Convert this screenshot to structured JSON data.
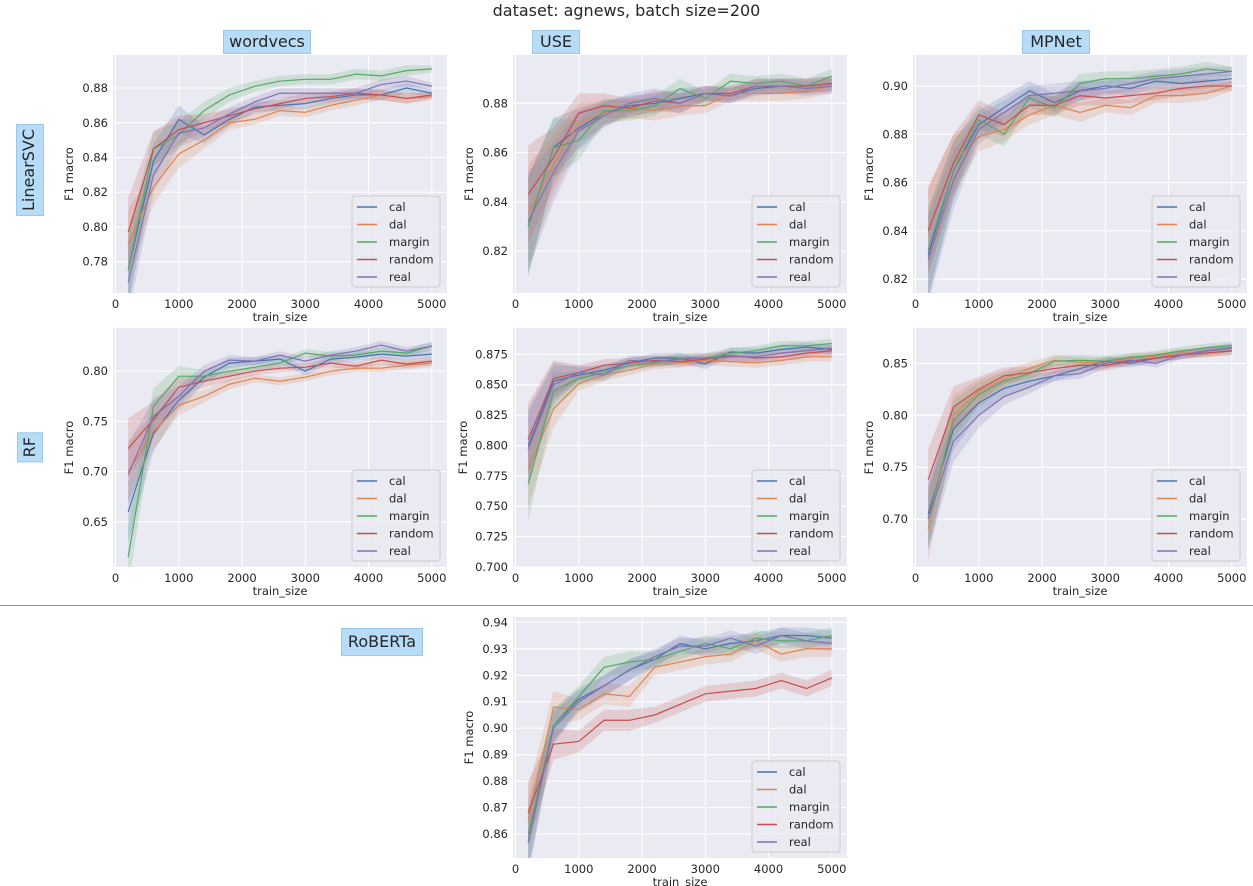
{
  "title": "dataset: agnews, batch size=200",
  "columns": [
    "wordvecs",
    "USE",
    "MPNet"
  ],
  "rows": [
    "LinearSVC",
    "RF",
    "RoBERTa"
  ],
  "colors": {
    "cal": "#4c72b0",
    "dal": "#dd8452",
    "margin": "#55a868",
    "random": "#c44e52",
    "real": "#8172b3",
    "background": "#eaeaf2",
    "grid": "#ffffff",
    "separator": "#e07b5a",
    "label_box": "#b6dcf7"
  },
  "chart_data": [
    {
      "type": "line",
      "row": "LinearSVC",
      "column": "wordvecs",
      "xlabel": "train_size",
      "ylabel": "F1 macro",
      "grid": true,
      "legend": "lower-right",
      "xlim": [
        -40,
        5240
      ],
      "ylim": [
        0.762,
        0.899
      ],
      "xticks": [
        "0",
        "1000",
        "2000",
        "3000",
        "4000",
        "5000"
      ],
      "yticks": [
        "0.78",
        "0.80",
        "0.82",
        "0.84",
        "0.86",
        "0.88"
      ],
      "x": [
        200,
        600,
        1000,
        1400,
        1800,
        2200,
        2600,
        3000,
        3400,
        3800,
        4200,
        4600,
        5000
      ],
      "ci_halfwidth": [
        0.02,
        0.01,
        0.008,
        0.005,
        0.004,
        0.003,
        0.003,
        0.003,
        0.003,
        0.003,
        0.003,
        0.003,
        0.002
      ],
      "series": [
        {
          "name": "cal",
          "values": [
            0.775,
            0.838,
            0.862,
            0.853,
            0.862,
            0.869,
            0.87,
            0.871,
            0.874,
            0.876,
            0.876,
            0.88,
            0.877
          ]
        },
        {
          "name": "dal",
          "values": [
            0.79,
            0.823,
            0.842,
            0.85,
            0.86,
            0.862,
            0.867,
            0.866,
            0.87,
            0.873,
            0.876,
            0.874,
            0.875
          ]
        },
        {
          "name": "margin",
          "values": [
            0.775,
            0.845,
            0.853,
            0.867,
            0.876,
            0.881,
            0.884,
            0.885,
            0.885,
            0.888,
            0.887,
            0.89,
            0.891
          ]
        },
        {
          "name": "random",
          "values": [
            0.797,
            0.845,
            0.856,
            0.86,
            0.864,
            0.868,
            0.871,
            0.874,
            0.875,
            0.877,
            0.876,
            0.874,
            0.876
          ]
        },
        {
          "name": "real",
          "values": [
            0.768,
            0.83,
            0.854,
            0.857,
            0.865,
            0.872,
            0.877,
            0.877,
            0.877,
            0.877,
            0.882,
            0.884,
            0.881
          ]
        }
      ]
    },
    {
      "type": "line",
      "row": "LinearSVC",
      "column": "USE",
      "xlabel": "train_size",
      "ylabel": "F1 macro",
      "grid": true,
      "legend": "lower-right",
      "xlim": [
        -40,
        5240
      ],
      "ylim": [
        0.803,
        0.8996
      ],
      "xticks": [
        "0",
        "1000",
        "2000",
        "3000",
        "4000",
        "5000"
      ],
      "yticks": [
        "0.82",
        "0.84",
        "0.86",
        "0.88"
      ],
      "x": [
        200,
        600,
        1000,
        1400,
        1800,
        2200,
        2600,
        3000,
        3400,
        3800,
        4200,
        4600,
        5000
      ],
      "ci_halfwidth": [
        0.02,
        0.012,
        0.008,
        0.005,
        0.004,
        0.004,
        0.004,
        0.003,
        0.003,
        0.003,
        0.003,
        0.003,
        0.003
      ],
      "series": [
        {
          "name": "cal",
          "values": [
            0.83,
            0.862,
            0.87,
            0.876,
            0.879,
            0.88,
            0.882,
            0.884,
            0.883,
            0.886,
            0.887,
            0.887,
            0.888
          ]
        },
        {
          "name": "dal",
          "values": [
            0.835,
            0.855,
            0.872,
            0.876,
            0.878,
            0.877,
            0.879,
            0.879,
            0.884,
            0.884,
            0.884,
            0.885,
            0.887
          ]
        },
        {
          "name": "margin",
          "values": [
            0.83,
            0.862,
            0.865,
            0.877,
            0.877,
            0.879,
            0.886,
            0.882,
            0.889,
            0.888,
            0.889,
            0.887,
            0.891
          ]
        },
        {
          "name": "random",
          "values": [
            0.843,
            0.858,
            0.876,
            0.879,
            0.878,
            0.881,
            0.88,
            0.884,
            0.884,
            0.887,
            0.887,
            0.887,
            0.888
          ]
        },
        {
          "name": "real",
          "values": [
            0.832,
            0.852,
            0.869,
            0.875,
            0.88,
            0.882,
            0.88,
            0.884,
            0.883,
            0.887,
            0.887,
            0.886,
            0.887
          ]
        }
      ]
    },
    {
      "type": "line",
      "row": "LinearSVC",
      "column": "MPNet",
      "xlabel": "train_size",
      "ylabel": "F1 macro",
      "grid": true,
      "legend": "lower-right",
      "xlim": [
        -40,
        5240
      ],
      "ylim": [
        0.8143,
        0.9128
      ],
      "xticks": [
        "0",
        "1000",
        "2000",
        "3000",
        "4000",
        "5000"
      ],
      "yticks": [
        "0.82",
        "0.84",
        "0.86",
        "0.88",
        "0.90"
      ],
      "x": [
        200,
        600,
        1000,
        1400,
        1800,
        2200,
        2600,
        3000,
        3400,
        3800,
        4200,
        4600,
        5000
      ],
      "ci_halfwidth": [
        0.018,
        0.012,
        0.006,
        0.005,
        0.004,
        0.004,
        0.004,
        0.003,
        0.003,
        0.003,
        0.003,
        0.003,
        0.002
      ],
      "series": [
        {
          "name": "cal",
          "values": [
            0.83,
            0.865,
            0.884,
            0.891,
            0.898,
            0.893,
            0.898,
            0.9,
            0.899,
            0.902,
            0.901,
            0.902,
            0.903
          ]
        },
        {
          "name": "dal",
          "values": [
            0.84,
            0.868,
            0.879,
            0.882,
            0.888,
            0.892,
            0.889,
            0.892,
            0.891,
            0.896,
            0.896,
            0.897,
            0.9
          ]
        },
        {
          "name": "margin",
          "values": [
            0.832,
            0.865,
            0.886,
            0.88,
            0.895,
            0.891,
            0.901,
            0.903,
            0.903,
            0.904,
            0.905,
            0.907,
            0.906
          ]
        },
        {
          "name": "random",
          "values": [
            0.84,
            0.868,
            0.888,
            0.884,
            0.892,
            0.892,
            0.896,
            0.895,
            0.896,
            0.897,
            0.899,
            0.9,
            0.9
          ]
        },
        {
          "name": "real",
          "values": [
            0.828,
            0.861,
            0.882,
            0.889,
            0.896,
            0.897,
            0.898,
            0.899,
            0.901,
            0.903,
            0.904,
            0.905,
            0.906
          ]
        }
      ]
    },
    {
      "type": "line",
      "row": "RF",
      "column": "wordvecs",
      "xlabel": "train_size",
      "ylabel": "F1 macro",
      "grid": true,
      "legend": "lower-right",
      "xlim": [
        -40,
        5240
      ],
      "ylim": [
        0.605,
        0.843
      ],
      "xticks": [
        "0",
        "1000",
        "2000",
        "3000",
        "4000",
        "5000"
      ],
      "yticks": [
        "0.65",
        "0.70",
        "0.75",
        "0.80"
      ],
      "x": [
        200,
        600,
        1000,
        1400,
        1800,
        2200,
        2600,
        3000,
        3400,
        3800,
        4200,
        4600,
        5000
      ],
      "ci_halfwidth": [
        0.03,
        0.018,
        0.01,
        0.006,
        0.005,
        0.004,
        0.004,
        0.004,
        0.004,
        0.004,
        0.004,
        0.004,
        0.004
      ],
      "series": [
        {
          "name": "cal",
          "values": [
            0.66,
            0.738,
            0.771,
            0.794,
            0.808,
            0.81,
            0.812,
            0.8,
            0.812,
            0.814,
            0.817,
            0.815,
            0.817
          ]
        },
        {
          "name": "dal",
          "values": [
            0.7,
            0.74,
            0.766,
            0.775,
            0.787,
            0.793,
            0.79,
            0.794,
            0.8,
            0.803,
            0.803,
            0.806,
            0.808
          ]
        },
        {
          "name": "margin",
          "values": [
            0.615,
            0.765,
            0.795,
            0.795,
            0.8,
            0.804,
            0.808,
            0.818,
            0.815,
            0.816,
            0.82,
            0.818,
            0.825
          ]
        },
        {
          "name": "random",
          "values": [
            0.723,
            0.752,
            0.784,
            0.79,
            0.795,
            0.8,
            0.803,
            0.804,
            0.808,
            0.805,
            0.811,
            0.807,
            0.81
          ]
        },
        {
          "name": "real",
          "values": [
            0.697,
            0.755,
            0.775,
            0.8,
            0.811,
            0.81,
            0.816,
            0.81,
            0.816,
            0.82,
            0.826,
            0.82,
            0.825
          ]
        }
      ]
    },
    {
      "type": "line",
      "row": "RF",
      "column": "USE",
      "xlabel": "train_size",
      "ylabel": "F1 macro",
      "grid": true,
      "legend": "lower-right",
      "xlim": [
        -40,
        5240
      ],
      "ylim": [
        0.7,
        0.8967
      ],
      "xticks": [
        "0",
        "1000",
        "2000",
        "3000",
        "4000",
        "5000"
      ],
      "yticks": [
        "0.700",
        "0.725",
        "0.750",
        "0.775",
        "0.800",
        "0.825",
        "0.850",
        "0.875"
      ],
      "x": [
        200,
        600,
        1000,
        1400,
        1800,
        2200,
        2600,
        3000,
        3400,
        3800,
        4200,
        4600,
        5000
      ],
      "ci_halfwidth": [
        0.03,
        0.015,
        0.006,
        0.005,
        0.004,
        0.004,
        0.004,
        0.004,
        0.004,
        0.004,
        0.004,
        0.004,
        0.004
      ],
      "series": [
        {
          "name": "cal",
          "values": [
            0.8,
            0.853,
            0.858,
            0.862,
            0.868,
            0.872,
            0.872,
            0.867,
            0.877,
            0.876,
            0.879,
            0.881,
            0.879
          ]
        },
        {
          "name": "dal",
          "values": [
            0.78,
            0.83,
            0.851,
            0.858,
            0.862,
            0.867,
            0.868,
            0.87,
            0.869,
            0.868,
            0.87,
            0.873,
            0.873
          ]
        },
        {
          "name": "margin",
          "values": [
            0.768,
            0.845,
            0.855,
            0.86,
            0.866,
            0.868,
            0.872,
            0.872,
            0.876,
            0.878,
            0.882,
            0.882,
            0.884
          ]
        },
        {
          "name": "random",
          "values": [
            0.805,
            0.855,
            0.86,
            0.866,
            0.868,
            0.87,
            0.869,
            0.871,
            0.874,
            0.872,
            0.873,
            0.876,
            0.878
          ]
        },
        {
          "name": "real",
          "values": [
            0.797,
            0.85,
            0.86,
            0.858,
            0.87,
            0.869,
            0.871,
            0.872,
            0.873,
            0.873,
            0.876,
            0.878,
            0.88
          ]
        }
      ]
    },
    {
      "type": "line",
      "row": "RF",
      "column": "MPNet",
      "xlabel": "train_size",
      "ylabel": "F1 macro",
      "grid": true,
      "legend": "lower-right",
      "xlim": [
        -40,
        5240
      ],
      "ylim": [
        0.654,
        0.884
      ],
      "xticks": [
        "0",
        "1000",
        "2000",
        "3000",
        "4000",
        "5000"
      ],
      "yticks": [
        "0.70",
        "0.75",
        "0.80",
        "0.85"
      ],
      "x": [
        200,
        600,
        1000,
        1400,
        1800,
        2200,
        2600,
        3000,
        3400,
        3800,
        4200,
        4600,
        5000
      ],
      "ci_halfwidth": [
        0.03,
        0.02,
        0.012,
        0.008,
        0.006,
        0.005,
        0.005,
        0.005,
        0.004,
        0.004,
        0.004,
        0.004,
        0.004
      ],
      "series": [
        {
          "name": "cal",
          "values": [
            0.705,
            0.787,
            0.812,
            0.826,
            0.833,
            0.838,
            0.845,
            0.852,
            0.85,
            0.855,
            0.858,
            0.862,
            0.865
          ]
        },
        {
          "name": "dal",
          "values": [
            0.69,
            0.8,
            0.823,
            0.835,
            0.845,
            0.853,
            0.851,
            0.85,
            0.855,
            0.857,
            0.86,
            0.86,
            0.862
          ]
        },
        {
          "name": "margin",
          "values": [
            0.7,
            0.795,
            0.82,
            0.833,
            0.84,
            0.852,
            0.853,
            0.852,
            0.856,
            0.858,
            0.862,
            0.865,
            0.867
          ]
        },
        {
          "name": "random",
          "values": [
            0.738,
            0.808,
            0.825,
            0.838,
            0.841,
            0.845,
            0.848,
            0.848,
            0.852,
            0.855,
            0.858,
            0.86,
            0.862
          ]
        },
        {
          "name": "real",
          "values": [
            0.7,
            0.775,
            0.8,
            0.818,
            0.827,
            0.838,
            0.84,
            0.85,
            0.853,
            0.85,
            0.858,
            0.862,
            0.865
          ]
        }
      ]
    },
    {
      "type": "line",
      "row": "RoBERTa",
      "column": "",
      "xlabel": "train_size",
      "ylabel": "F1 macro",
      "grid": true,
      "legend": "lower-right",
      "xlim": [
        -40,
        5240
      ],
      "ylim": [
        0.851,
        0.942
      ],
      "xticks": [
        "0",
        "1000",
        "2000",
        "3000",
        "4000",
        "5000"
      ],
      "yticks": [
        "0.86",
        "0.87",
        "0.88",
        "0.89",
        "0.90",
        "0.91",
        "0.92",
        "0.93",
        "0.94"
      ],
      "x": [
        200,
        600,
        1000,
        1400,
        1800,
        2200,
        2600,
        3000,
        3400,
        3800,
        4200,
        4600,
        5000
      ],
      "ci_halfwidth": [
        0.012,
        0.006,
        0.004,
        0.004,
        0.004,
        0.003,
        0.003,
        0.003,
        0.003,
        0.003,
        0.003,
        0.003,
        0.003
      ],
      "series": [
        {
          "name": "cal",
          "values": [
            0.857,
            0.901,
            0.911,
            0.916,
            0.922,
            0.926,
            0.932,
            0.93,
            0.932,
            0.933,
            0.935,
            0.935,
            0.934
          ]
        },
        {
          "name": "dal",
          "values": [
            0.865,
            0.908,
            0.907,
            0.913,
            0.912,
            0.923,
            0.925,
            0.927,
            0.928,
            0.933,
            0.928,
            0.93,
            0.93
          ]
        },
        {
          "name": "margin",
          "values": [
            0.86,
            0.901,
            0.912,
            0.923,
            0.925,
            0.926,
            0.929,
            0.932,
            0.93,
            0.934,
            0.933,
            0.933,
            0.935
          ]
        },
        {
          "name": "random",
          "values": [
            0.868,
            0.894,
            0.895,
            0.903,
            0.903,
            0.905,
            0.909,
            0.913,
            0.914,
            0.915,
            0.918,
            0.915,
            0.919
          ]
        },
        {
          "name": "real",
          "values": [
            0.857,
            0.9,
            0.91,
            0.916,
            0.922,
            0.927,
            0.931,
            0.931,
            0.934,
            0.931,
            0.935,
            0.933,
            0.932
          ]
        }
      ]
    }
  ]
}
